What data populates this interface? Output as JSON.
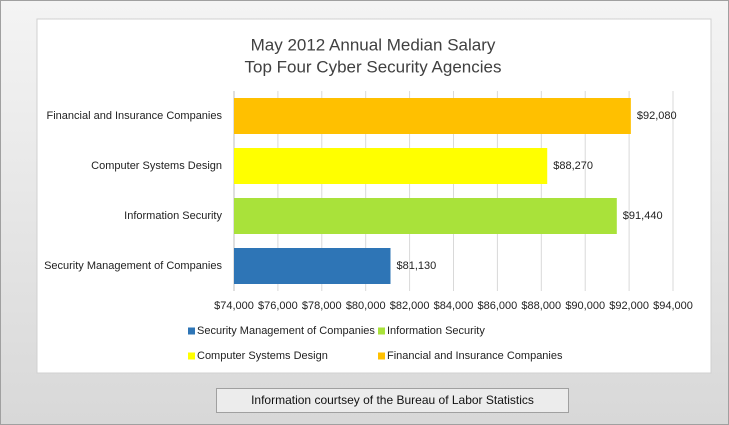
{
  "chart_data": {
    "type": "hbar",
    "title": "May 2012 Annual Median Salary",
    "subtitle": "Top Four Cyber Security Agencies",
    "categories": [
      "Security Management of Companies",
      "Information Security",
      "Computer Systems Design",
      "Financial and Insurance Companies"
    ],
    "values": [
      81130,
      91440,
      88270,
      92080
    ],
    "value_labels": [
      "$81,130",
      "$91,440",
      "$88,270",
      "$92,080"
    ],
    "colors": [
      "#2e75b6",
      "#a9e23a",
      "#ffff00",
      "#ffc000"
    ],
    "xlim": [
      74000,
      94000
    ],
    "xticks": [
      {
        "value": 74000,
        "label": "$74,000"
      },
      {
        "value": 76000,
        "label": "$76,000"
      },
      {
        "value": 78000,
        "label": "$78,000"
      },
      {
        "value": 80000,
        "label": "$80,000"
      },
      {
        "value": 82000,
        "label": "$82,000"
      },
      {
        "value": 84000,
        "label": "$84,000"
      },
      {
        "value": 86000,
        "label": "$86,000"
      },
      {
        "value": 88000,
        "label": "$88,000"
      },
      {
        "value": 90000,
        "label": "$90,000"
      },
      {
        "value": 92000,
        "label": "$92,000"
      },
      {
        "value": 94000,
        "label": "$94,000"
      }
    ],
    "grid": true
  },
  "footer": "Information courtsey of the Bureau of Labor Statistics"
}
